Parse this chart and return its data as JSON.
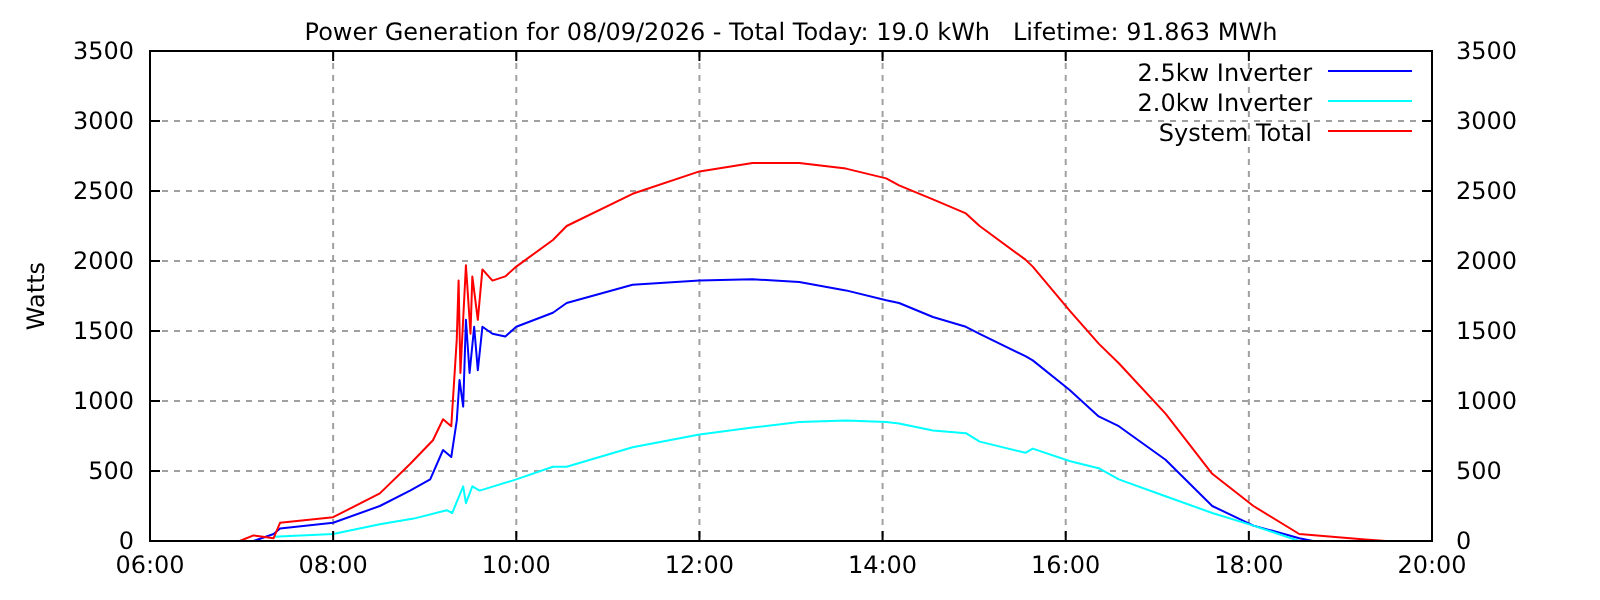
{
  "chart_data": {
    "type": "line",
    "title": "Power Generation for 08/09/2026 - Total Today: 19.0 kWh   Lifetime: 91.863 MWh",
    "ylabel": "Watts",
    "xlim": [
      6,
      20
    ],
    "xticks": [
      {
        "value": 6,
        "label": "06:00"
      },
      {
        "value": 8,
        "label": "08:00"
      },
      {
        "value": 10,
        "label": "10:00"
      },
      {
        "value": 12,
        "label": "12:00"
      },
      {
        "value": 14,
        "label": "14:00"
      },
      {
        "value": 16,
        "label": "16:00"
      },
      {
        "value": 18,
        "label": "18:00"
      },
      {
        "value": 20,
        "label": "20:00"
      }
    ],
    "ylim": [
      0,
      3500
    ],
    "yticks": [
      0,
      500,
      1000,
      1500,
      2000,
      2500,
      3000,
      3500
    ],
    "y2lim": [
      0,
      3500
    ],
    "y2ticks": [
      0,
      500,
      1000,
      1500,
      2000,
      2500,
      3000,
      3500
    ],
    "grid": true,
    "legend": "top right",
    "line_style": "solid",
    "marker": "none",
    "series": [
      {
        "name": "2.5kw Inverter",
        "color": "#0000ff",
        "x": [
          7.13,
          7.35,
          7.42,
          8.0,
          8.51,
          8.84,
          9.06,
          9.2,
          9.29,
          9.35,
          9.38,
          9.42,
          9.45,
          9.49,
          9.54,
          9.58,
          9.63,
          9.74,
          9.88,
          10.0,
          10.4,
          10.55,
          11.27,
          12.0,
          12.58,
          13.09,
          13.6,
          14.04,
          14.18,
          14.55,
          14.91,
          15.06,
          15.56,
          15.64,
          16.04,
          16.36,
          16.58,
          17.09,
          17.6,
          18.05,
          18.55,
          18.7
        ],
        "values": [
          0,
          50,
          90,
          130,
          250,
          360,
          440,
          650,
          600,
          860,
          1150,
          960,
          1580,
          1200,
          1530,
          1220,
          1530,
          1480,
          1460,
          1530,
          1630,
          1700,
          1830,
          1860,
          1870,
          1850,
          1790,
          1720,
          1700,
          1600,
          1530,
          1480,
          1320,
          1290,
          1080,
          890,
          820,
          580,
          250,
          110,
          20,
          0
        ]
      },
      {
        "name": "2.0kw Inverter",
        "color": "#00ffff",
        "x": [
          7.35,
          8.0,
          8.51,
          8.88,
          9.24,
          9.3,
          9.42,
          9.45,
          9.52,
          9.6,
          10.0,
          10.4,
          10.55,
          11.27,
          12.0,
          12.58,
          13.09,
          13.6,
          14.04,
          14.18,
          14.55,
          14.91,
          15.06,
          15.56,
          15.64,
          16.05,
          16.36,
          16.58,
          17.09,
          17.6,
          18.05,
          18.55
        ],
        "values": [
          30,
          50,
          120,
          160,
          220,
          200,
          390,
          270,
          390,
          360,
          440,
          530,
          530,
          670,
          760,
          810,
          850,
          860,
          850,
          840,
          790,
          770,
          710,
          630,
          660,
          570,
          520,
          440,
          320,
          200,
          110,
          0
        ]
      },
      {
        "name": "System Total",
        "color": "#ff0000",
        "x": [
          6.98,
          7.13,
          7.35,
          7.42,
          8.0,
          8.51,
          8.84,
          9.09,
          9.2,
          9.29,
          9.35,
          9.37,
          9.39,
          9.45,
          9.5,
          9.52,
          9.58,
          9.63,
          9.74,
          9.88,
          10.0,
          10.4,
          10.55,
          11.27,
          12.0,
          12.58,
          13.09,
          13.6,
          14.04,
          14.18,
          14.55,
          14.91,
          15.06,
          15.56,
          15.64,
          16.05,
          16.36,
          16.58,
          17.09,
          17.6,
          18.05,
          18.55,
          19.27,
          19.5
        ],
        "values": [
          0,
          40,
          20,
          130,
          170,
          340,
          550,
          720,
          870,
          820,
          1440,
          1860,
          1200,
          1970,
          1480,
          1890,
          1580,
          1940,
          1860,
          1890,
          1960,
          2150,
          2250,
          2480,
          2640,
          2700,
          2700,
          2660,
          2590,
          2540,
          2440,
          2340,
          2250,
          2010,
          1960,
          1640,
          1410,
          1270,
          910,
          480,
          250,
          50,
          10,
          0
        ]
      }
    ]
  }
}
